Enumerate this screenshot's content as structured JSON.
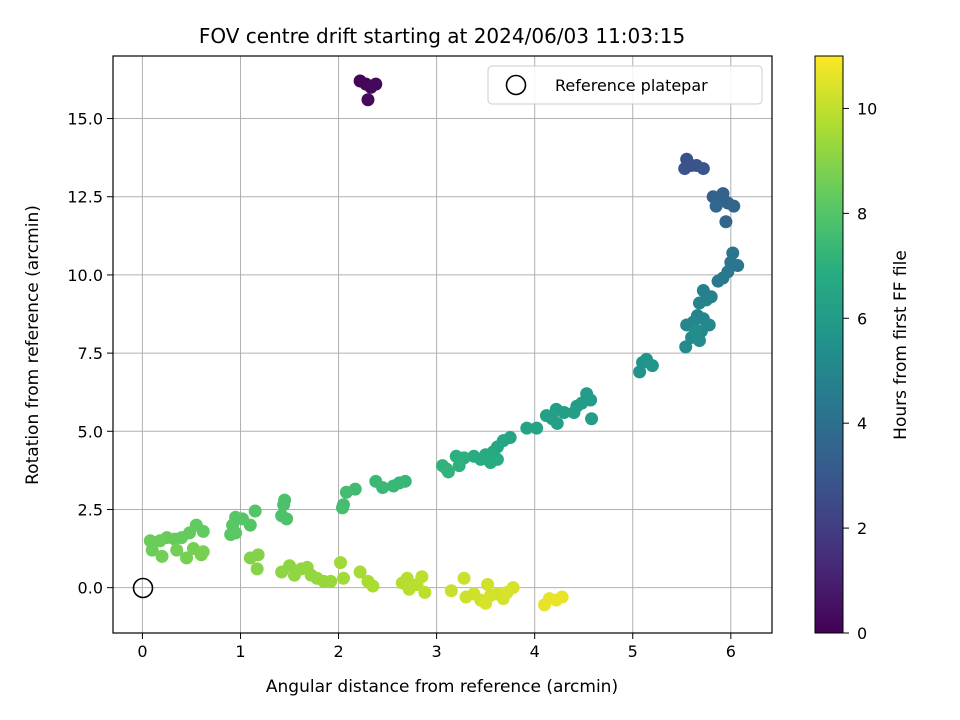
{
  "chart_data": {
    "type": "scatter",
    "title": "FOV centre drift starting at 2024/06/03 11:03:15",
    "xlabel": "Angular distance from reference (arcmin)",
    "ylabel": "Rotation from reference (arcmin)",
    "xlim": [
      -0.3,
      6.42
    ],
    "ylim": [
      -1.45,
      17.0
    ],
    "xticks": [
      0,
      1,
      2,
      3,
      4,
      5,
      6
    ],
    "xtick_labels": [
      "0",
      "1",
      "2",
      "3",
      "4",
      "5",
      "6"
    ],
    "yticks": [
      0,
      2.5,
      5,
      7.5,
      10,
      12.5,
      15
    ],
    "ytick_labels": [
      "0.0",
      "2.5",
      "5.0",
      "7.5",
      "10.0",
      "12.5",
      "15.0"
    ],
    "grid": true,
    "legend": {
      "position": "top-right",
      "entries": [
        "Reference platepar"
      ]
    },
    "reference_point": {
      "x": 0,
      "y": 0,
      "label": "Reference platepar"
    },
    "colorbar": {
      "label": "Hours from first FF file",
      "range": [
        0,
        11
      ],
      "ticks": [
        0,
        2,
        4,
        6,
        8,
        10
      ],
      "tick_labels": [
        "0",
        "2",
        "4",
        "6",
        "8",
        "10"
      ],
      "colormap": "viridis"
    },
    "points": [
      {
        "x": 2.22,
        "y": 16.2,
        "h": 0.1
      },
      {
        "x": 2.28,
        "y": 16.1,
        "h": 0.15
      },
      {
        "x": 2.33,
        "y": 16.0,
        "h": 0.2
      },
      {
        "x": 2.38,
        "y": 16.1,
        "h": 0.25
      },
      {
        "x": 2.3,
        "y": 15.6,
        "h": 0.3
      },
      {
        "x": 5.55,
        "y": 13.7,
        "h": 2.7
      },
      {
        "x": 5.6,
        "y": 13.5,
        "h": 2.75
      },
      {
        "x": 5.53,
        "y": 13.4,
        "h": 2.8
      },
      {
        "x": 5.65,
        "y": 13.5,
        "h": 2.85
      },
      {
        "x": 5.72,
        "y": 13.4,
        "h": 2.9
      },
      {
        "x": 5.82,
        "y": 12.5,
        "h": 3.4
      },
      {
        "x": 5.87,
        "y": 12.4,
        "h": 3.45
      },
      {
        "x": 5.92,
        "y": 12.6,
        "h": 3.5
      },
      {
        "x": 5.97,
        "y": 12.3,
        "h": 3.55
      },
      {
        "x": 6.03,
        "y": 12.2,
        "h": 3.6
      },
      {
        "x": 5.95,
        "y": 11.7,
        "h": 3.65
      },
      {
        "x": 5.85,
        "y": 12.2,
        "h": 3.7
      },
      {
        "x": 6.02,
        "y": 10.7,
        "h": 4.2
      },
      {
        "x": 6.07,
        "y": 10.3,
        "h": 4.25
      },
      {
        "x": 6.0,
        "y": 10.4,
        "h": 4.3
      },
      {
        "x": 5.97,
        "y": 10.1,
        "h": 4.35
      },
      {
        "x": 5.92,
        "y": 9.9,
        "h": 4.4
      },
      {
        "x": 5.87,
        "y": 9.8,
        "h": 4.45
      },
      {
        "x": 5.72,
        "y": 9.5,
        "h": 4.7
      },
      {
        "x": 5.8,
        "y": 9.3,
        "h": 4.75
      },
      {
        "x": 5.75,
        "y": 9.2,
        "h": 4.8
      },
      {
        "x": 5.68,
        "y": 9.1,
        "h": 4.85
      },
      {
        "x": 5.66,
        "y": 8.7,
        "h": 4.9
      },
      {
        "x": 5.72,
        "y": 8.6,
        "h": 4.95
      },
      {
        "x": 5.62,
        "y": 8.5,
        "h": 5.0
      },
      {
        "x": 5.55,
        "y": 8.4,
        "h": 5.05
      },
      {
        "x": 5.78,
        "y": 8.4,
        "h": 5.1
      },
      {
        "x": 5.7,
        "y": 8.2,
        "h": 5.15
      },
      {
        "x": 5.6,
        "y": 8.0,
        "h": 5.2
      },
      {
        "x": 5.54,
        "y": 7.7,
        "h": 5.25
      },
      {
        "x": 5.68,
        "y": 7.9,
        "h": 5.3
      },
      {
        "x": 5.64,
        "y": 8.2,
        "h": 5.35
      },
      {
        "x": 5.1,
        "y": 7.2,
        "h": 5.6
      },
      {
        "x": 5.07,
        "y": 6.9,
        "h": 5.65
      },
      {
        "x": 5.14,
        "y": 7.3,
        "h": 5.7
      },
      {
        "x": 5.2,
        "y": 7.1,
        "h": 5.75
      },
      {
        "x": 4.57,
        "y": 6.0,
        "h": 6.0
      },
      {
        "x": 4.53,
        "y": 6.2,
        "h": 6.02
      },
      {
        "x": 4.48,
        "y": 5.9,
        "h": 6.05
      },
      {
        "x": 4.43,
        "y": 5.8,
        "h": 6.08
      },
      {
        "x": 4.58,
        "y": 5.4,
        "h": 6.1
      },
      {
        "x": 4.4,
        "y": 5.6,
        "h": 6.12
      },
      {
        "x": 4.3,
        "y": 5.6,
        "h": 6.15
      },
      {
        "x": 4.22,
        "y": 5.7,
        "h": 6.18
      },
      {
        "x": 4.18,
        "y": 5.4,
        "h": 6.2
      },
      {
        "x": 4.12,
        "y": 5.5,
        "h": 6.22
      },
      {
        "x": 4.23,
        "y": 5.25,
        "h": 6.25
      },
      {
        "x": 4.02,
        "y": 5.1,
        "h": 6.4
      },
      {
        "x": 3.92,
        "y": 5.1,
        "h": 6.45
      },
      {
        "x": 3.75,
        "y": 4.8,
        "h": 6.5
      },
      {
        "x": 3.68,
        "y": 4.7,
        "h": 6.55
      },
      {
        "x": 3.62,
        "y": 4.5,
        "h": 6.6
      },
      {
        "x": 3.58,
        "y": 4.35,
        "h": 6.65
      },
      {
        "x": 3.5,
        "y": 4.25,
        "h": 6.7
      },
      {
        "x": 3.55,
        "y": 4.0,
        "h": 6.75
      },
      {
        "x": 3.62,
        "y": 4.1,
        "h": 6.8
      },
      {
        "x": 3.45,
        "y": 4.1,
        "h": 6.82
      },
      {
        "x": 3.38,
        "y": 4.2,
        "h": 6.85
      },
      {
        "x": 3.28,
        "y": 4.15,
        "h": 6.95
      },
      {
        "x": 3.2,
        "y": 4.2,
        "h": 7.0
      },
      {
        "x": 3.23,
        "y": 3.9,
        "h": 7.05
      },
      {
        "x": 3.1,
        "y": 3.8,
        "h": 7.1
      },
      {
        "x": 3.06,
        "y": 3.9,
        "h": 7.12
      },
      {
        "x": 3.12,
        "y": 3.7,
        "h": 7.15
      },
      {
        "x": 2.68,
        "y": 3.4,
        "h": 7.3
      },
      {
        "x": 2.62,
        "y": 3.35,
        "h": 7.32
      },
      {
        "x": 2.56,
        "y": 3.25,
        "h": 7.35
      },
      {
        "x": 2.45,
        "y": 3.2,
        "h": 7.38
      },
      {
        "x": 2.38,
        "y": 3.4,
        "h": 7.4
      },
      {
        "x": 2.17,
        "y": 3.15,
        "h": 7.55
      },
      {
        "x": 2.08,
        "y": 3.05,
        "h": 7.6
      },
      {
        "x": 2.05,
        "y": 2.65,
        "h": 7.62
      },
      {
        "x": 2.04,
        "y": 2.55,
        "h": 7.65
      },
      {
        "x": 1.45,
        "y": 2.8,
        "h": 7.8
      },
      {
        "x": 1.44,
        "y": 2.65,
        "h": 7.82
      },
      {
        "x": 1.42,
        "y": 2.3,
        "h": 7.85
      },
      {
        "x": 1.47,
        "y": 2.2,
        "h": 7.88
      },
      {
        "x": 1.15,
        "y": 2.45,
        "h": 8.0
      },
      {
        "x": 1.1,
        "y": 2.0,
        "h": 8.02
      },
      {
        "x": 1.02,
        "y": 2.2,
        "h": 8.05
      },
      {
        "x": 0.95,
        "y": 2.25,
        "h": 8.08
      },
      {
        "x": 0.92,
        "y": 2.0,
        "h": 8.1
      },
      {
        "x": 0.9,
        "y": 1.7,
        "h": 8.12
      },
      {
        "x": 0.95,
        "y": 1.75,
        "h": 8.15
      },
      {
        "x": 0.55,
        "y": 2.0,
        "h": 8.3
      },
      {
        "x": 0.62,
        "y": 1.8,
        "h": 8.32
      },
      {
        "x": 0.48,
        "y": 1.75,
        "h": 8.35
      },
      {
        "x": 0.4,
        "y": 1.6,
        "h": 8.38
      },
      {
        "x": 0.33,
        "y": 1.55,
        "h": 8.4
      },
      {
        "x": 0.25,
        "y": 1.6,
        "h": 8.42
      },
      {
        "x": 0.18,
        "y": 1.5,
        "h": 8.45
      },
      {
        "x": 0.08,
        "y": 1.5,
        "h": 8.48
      },
      {
        "x": 0.1,
        "y": 1.2,
        "h": 8.5
      },
      {
        "x": 0.2,
        "y": 1.0,
        "h": 8.6
      },
      {
        "x": 0.35,
        "y": 1.2,
        "h": 8.62
      },
      {
        "x": 0.45,
        "y": 0.95,
        "h": 8.65
      },
      {
        "x": 0.52,
        "y": 1.25,
        "h": 8.68
      },
      {
        "x": 0.6,
        "y": 1.05,
        "h": 8.7
      },
      {
        "x": 0.62,
        "y": 1.15,
        "h": 8.72
      },
      {
        "x": 1.18,
        "y": 1.05,
        "h": 8.9
      },
      {
        "x": 1.1,
        "y": 0.95,
        "h": 8.92
      },
      {
        "x": 1.17,
        "y": 0.6,
        "h": 8.95
      },
      {
        "x": 1.42,
        "y": 0.5,
        "h": 9.1
      },
      {
        "x": 1.5,
        "y": 0.7,
        "h": 9.12
      },
      {
        "x": 1.55,
        "y": 0.4,
        "h": 9.15
      },
      {
        "x": 1.62,
        "y": 0.6,
        "h": 9.18
      },
      {
        "x": 1.68,
        "y": 0.65,
        "h": 9.2
      },
      {
        "x": 1.72,
        "y": 0.4,
        "h": 9.22
      },
      {
        "x": 1.78,
        "y": 0.3,
        "h": 9.25
      },
      {
        "x": 1.85,
        "y": 0.2,
        "h": 9.28
      },
      {
        "x": 1.92,
        "y": 0.2,
        "h": 9.3
      },
      {
        "x": 2.02,
        "y": 0.8,
        "h": 9.45
      },
      {
        "x": 2.05,
        "y": 0.3,
        "h": 9.48
      },
      {
        "x": 2.22,
        "y": 0.5,
        "h": 9.55
      },
      {
        "x": 2.3,
        "y": 0.2,
        "h": 9.6
      },
      {
        "x": 2.35,
        "y": 0.05,
        "h": 9.62
      },
      {
        "x": 2.65,
        "y": 0.15,
        "h": 9.8
      },
      {
        "x": 2.7,
        "y": 0.3,
        "h": 9.82
      },
      {
        "x": 2.72,
        "y": -0.05,
        "h": 9.85
      },
      {
        "x": 2.8,
        "y": 0.1,
        "h": 9.88
      },
      {
        "x": 2.85,
        "y": 0.35,
        "h": 9.9
      },
      {
        "x": 2.88,
        "y": -0.15,
        "h": 9.92
      },
      {
        "x": 3.15,
        "y": -0.1,
        "h": 10.1
      },
      {
        "x": 3.28,
        "y": 0.3,
        "h": 10.15
      },
      {
        "x": 3.3,
        "y": -0.3,
        "h": 10.18
      },
      {
        "x": 3.38,
        "y": -0.2,
        "h": 10.2
      },
      {
        "x": 3.45,
        "y": -0.4,
        "h": 10.22
      },
      {
        "x": 3.52,
        "y": 0.1,
        "h": 10.25
      },
      {
        "x": 3.55,
        "y": -0.25,
        "h": 10.28
      },
      {
        "x": 3.62,
        "y": -0.2,
        "h": 10.3
      },
      {
        "x": 3.68,
        "y": -0.35,
        "h": 10.32
      },
      {
        "x": 3.72,
        "y": -0.15,
        "h": 10.35
      },
      {
        "x": 3.78,
        "y": 0.0,
        "h": 10.38
      },
      {
        "x": 3.5,
        "y": -0.5,
        "h": 10.4
      },
      {
        "x": 4.1,
        "y": -0.55,
        "h": 10.6
      },
      {
        "x": 4.15,
        "y": -0.35,
        "h": 10.62
      },
      {
        "x": 4.22,
        "y": -0.4,
        "h": 10.65
      },
      {
        "x": 4.28,
        "y": -0.3,
        "h": 10.68
      }
    ]
  }
}
